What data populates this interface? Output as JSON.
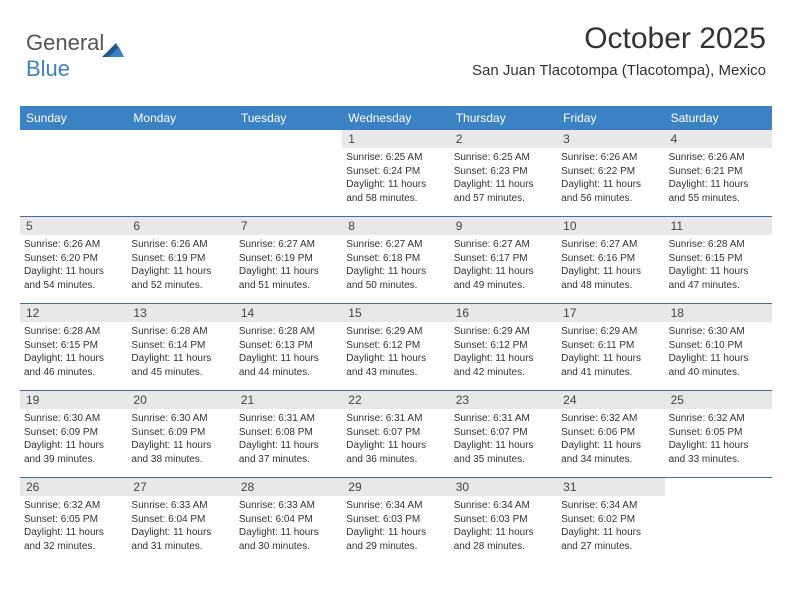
{
  "brand": {
    "part1": "General",
    "part2": "Blue"
  },
  "title": "October 2025",
  "location": "San Juan Tlacotompa (Tlacotompa), Mexico",
  "colors": {
    "header_bg": "#3b82c4",
    "header_text": "#ffffff",
    "daynum_bg": "#e8e8e8",
    "week_border": "#3b6fa0",
    "text": "#333333"
  },
  "day_names": [
    "Sunday",
    "Monday",
    "Tuesday",
    "Wednesday",
    "Thursday",
    "Friday",
    "Saturday"
  ],
  "weeks": [
    [
      {
        "day": "",
        "empty": true
      },
      {
        "day": "",
        "empty": true
      },
      {
        "day": "",
        "empty": true
      },
      {
        "day": "1",
        "sunrise": "Sunrise: 6:25 AM",
        "sunset": "Sunset: 6:24 PM",
        "daylight1": "Daylight: 11 hours",
        "daylight2": "and 58 minutes."
      },
      {
        "day": "2",
        "sunrise": "Sunrise: 6:25 AM",
        "sunset": "Sunset: 6:23 PM",
        "daylight1": "Daylight: 11 hours",
        "daylight2": "and 57 minutes."
      },
      {
        "day": "3",
        "sunrise": "Sunrise: 6:26 AM",
        "sunset": "Sunset: 6:22 PM",
        "daylight1": "Daylight: 11 hours",
        "daylight2": "and 56 minutes."
      },
      {
        "day": "4",
        "sunrise": "Sunrise: 6:26 AM",
        "sunset": "Sunset: 6:21 PM",
        "daylight1": "Daylight: 11 hours",
        "daylight2": "and 55 minutes."
      }
    ],
    [
      {
        "day": "5",
        "sunrise": "Sunrise: 6:26 AM",
        "sunset": "Sunset: 6:20 PM",
        "daylight1": "Daylight: 11 hours",
        "daylight2": "and 54 minutes."
      },
      {
        "day": "6",
        "sunrise": "Sunrise: 6:26 AM",
        "sunset": "Sunset: 6:19 PM",
        "daylight1": "Daylight: 11 hours",
        "daylight2": "and 52 minutes."
      },
      {
        "day": "7",
        "sunrise": "Sunrise: 6:27 AM",
        "sunset": "Sunset: 6:19 PM",
        "daylight1": "Daylight: 11 hours",
        "daylight2": "and 51 minutes."
      },
      {
        "day": "8",
        "sunrise": "Sunrise: 6:27 AM",
        "sunset": "Sunset: 6:18 PM",
        "daylight1": "Daylight: 11 hours",
        "daylight2": "and 50 minutes."
      },
      {
        "day": "9",
        "sunrise": "Sunrise: 6:27 AM",
        "sunset": "Sunset: 6:17 PM",
        "daylight1": "Daylight: 11 hours",
        "daylight2": "and 49 minutes."
      },
      {
        "day": "10",
        "sunrise": "Sunrise: 6:27 AM",
        "sunset": "Sunset: 6:16 PM",
        "daylight1": "Daylight: 11 hours",
        "daylight2": "and 48 minutes."
      },
      {
        "day": "11",
        "sunrise": "Sunrise: 6:28 AM",
        "sunset": "Sunset: 6:15 PM",
        "daylight1": "Daylight: 11 hours",
        "daylight2": "and 47 minutes."
      }
    ],
    [
      {
        "day": "12",
        "sunrise": "Sunrise: 6:28 AM",
        "sunset": "Sunset: 6:15 PM",
        "daylight1": "Daylight: 11 hours",
        "daylight2": "and 46 minutes."
      },
      {
        "day": "13",
        "sunrise": "Sunrise: 6:28 AM",
        "sunset": "Sunset: 6:14 PM",
        "daylight1": "Daylight: 11 hours",
        "daylight2": "and 45 minutes."
      },
      {
        "day": "14",
        "sunrise": "Sunrise: 6:28 AM",
        "sunset": "Sunset: 6:13 PM",
        "daylight1": "Daylight: 11 hours",
        "daylight2": "and 44 minutes."
      },
      {
        "day": "15",
        "sunrise": "Sunrise: 6:29 AM",
        "sunset": "Sunset: 6:12 PM",
        "daylight1": "Daylight: 11 hours",
        "daylight2": "and 43 minutes."
      },
      {
        "day": "16",
        "sunrise": "Sunrise: 6:29 AM",
        "sunset": "Sunset: 6:12 PM",
        "daylight1": "Daylight: 11 hours",
        "daylight2": "and 42 minutes."
      },
      {
        "day": "17",
        "sunrise": "Sunrise: 6:29 AM",
        "sunset": "Sunset: 6:11 PM",
        "daylight1": "Daylight: 11 hours",
        "daylight2": "and 41 minutes."
      },
      {
        "day": "18",
        "sunrise": "Sunrise: 6:30 AM",
        "sunset": "Sunset: 6:10 PM",
        "daylight1": "Daylight: 11 hours",
        "daylight2": "and 40 minutes."
      }
    ],
    [
      {
        "day": "19",
        "sunrise": "Sunrise: 6:30 AM",
        "sunset": "Sunset: 6:09 PM",
        "daylight1": "Daylight: 11 hours",
        "daylight2": "and 39 minutes."
      },
      {
        "day": "20",
        "sunrise": "Sunrise: 6:30 AM",
        "sunset": "Sunset: 6:09 PM",
        "daylight1": "Daylight: 11 hours",
        "daylight2": "and 38 minutes."
      },
      {
        "day": "21",
        "sunrise": "Sunrise: 6:31 AM",
        "sunset": "Sunset: 6:08 PM",
        "daylight1": "Daylight: 11 hours",
        "daylight2": "and 37 minutes."
      },
      {
        "day": "22",
        "sunrise": "Sunrise: 6:31 AM",
        "sunset": "Sunset: 6:07 PM",
        "daylight1": "Daylight: 11 hours",
        "daylight2": "and 36 minutes."
      },
      {
        "day": "23",
        "sunrise": "Sunrise: 6:31 AM",
        "sunset": "Sunset: 6:07 PM",
        "daylight1": "Daylight: 11 hours",
        "daylight2": "and 35 minutes."
      },
      {
        "day": "24",
        "sunrise": "Sunrise: 6:32 AM",
        "sunset": "Sunset: 6:06 PM",
        "daylight1": "Daylight: 11 hours",
        "daylight2": "and 34 minutes."
      },
      {
        "day": "25",
        "sunrise": "Sunrise: 6:32 AM",
        "sunset": "Sunset: 6:05 PM",
        "daylight1": "Daylight: 11 hours",
        "daylight2": "and 33 minutes."
      }
    ],
    [
      {
        "day": "26",
        "sunrise": "Sunrise: 6:32 AM",
        "sunset": "Sunset: 6:05 PM",
        "daylight1": "Daylight: 11 hours",
        "daylight2": "and 32 minutes."
      },
      {
        "day": "27",
        "sunrise": "Sunrise: 6:33 AM",
        "sunset": "Sunset: 6:04 PM",
        "daylight1": "Daylight: 11 hours",
        "daylight2": "and 31 minutes."
      },
      {
        "day": "28",
        "sunrise": "Sunrise: 6:33 AM",
        "sunset": "Sunset: 6:04 PM",
        "daylight1": "Daylight: 11 hours",
        "daylight2": "and 30 minutes."
      },
      {
        "day": "29",
        "sunrise": "Sunrise: 6:34 AM",
        "sunset": "Sunset: 6:03 PM",
        "daylight1": "Daylight: 11 hours",
        "daylight2": "and 29 minutes."
      },
      {
        "day": "30",
        "sunrise": "Sunrise: 6:34 AM",
        "sunset": "Sunset: 6:03 PM",
        "daylight1": "Daylight: 11 hours",
        "daylight2": "and 28 minutes."
      },
      {
        "day": "31",
        "sunrise": "Sunrise: 6:34 AM",
        "sunset": "Sunset: 6:02 PM",
        "daylight1": "Daylight: 11 hours",
        "daylight2": "and 27 minutes."
      },
      {
        "day": "",
        "empty": true
      }
    ]
  ]
}
